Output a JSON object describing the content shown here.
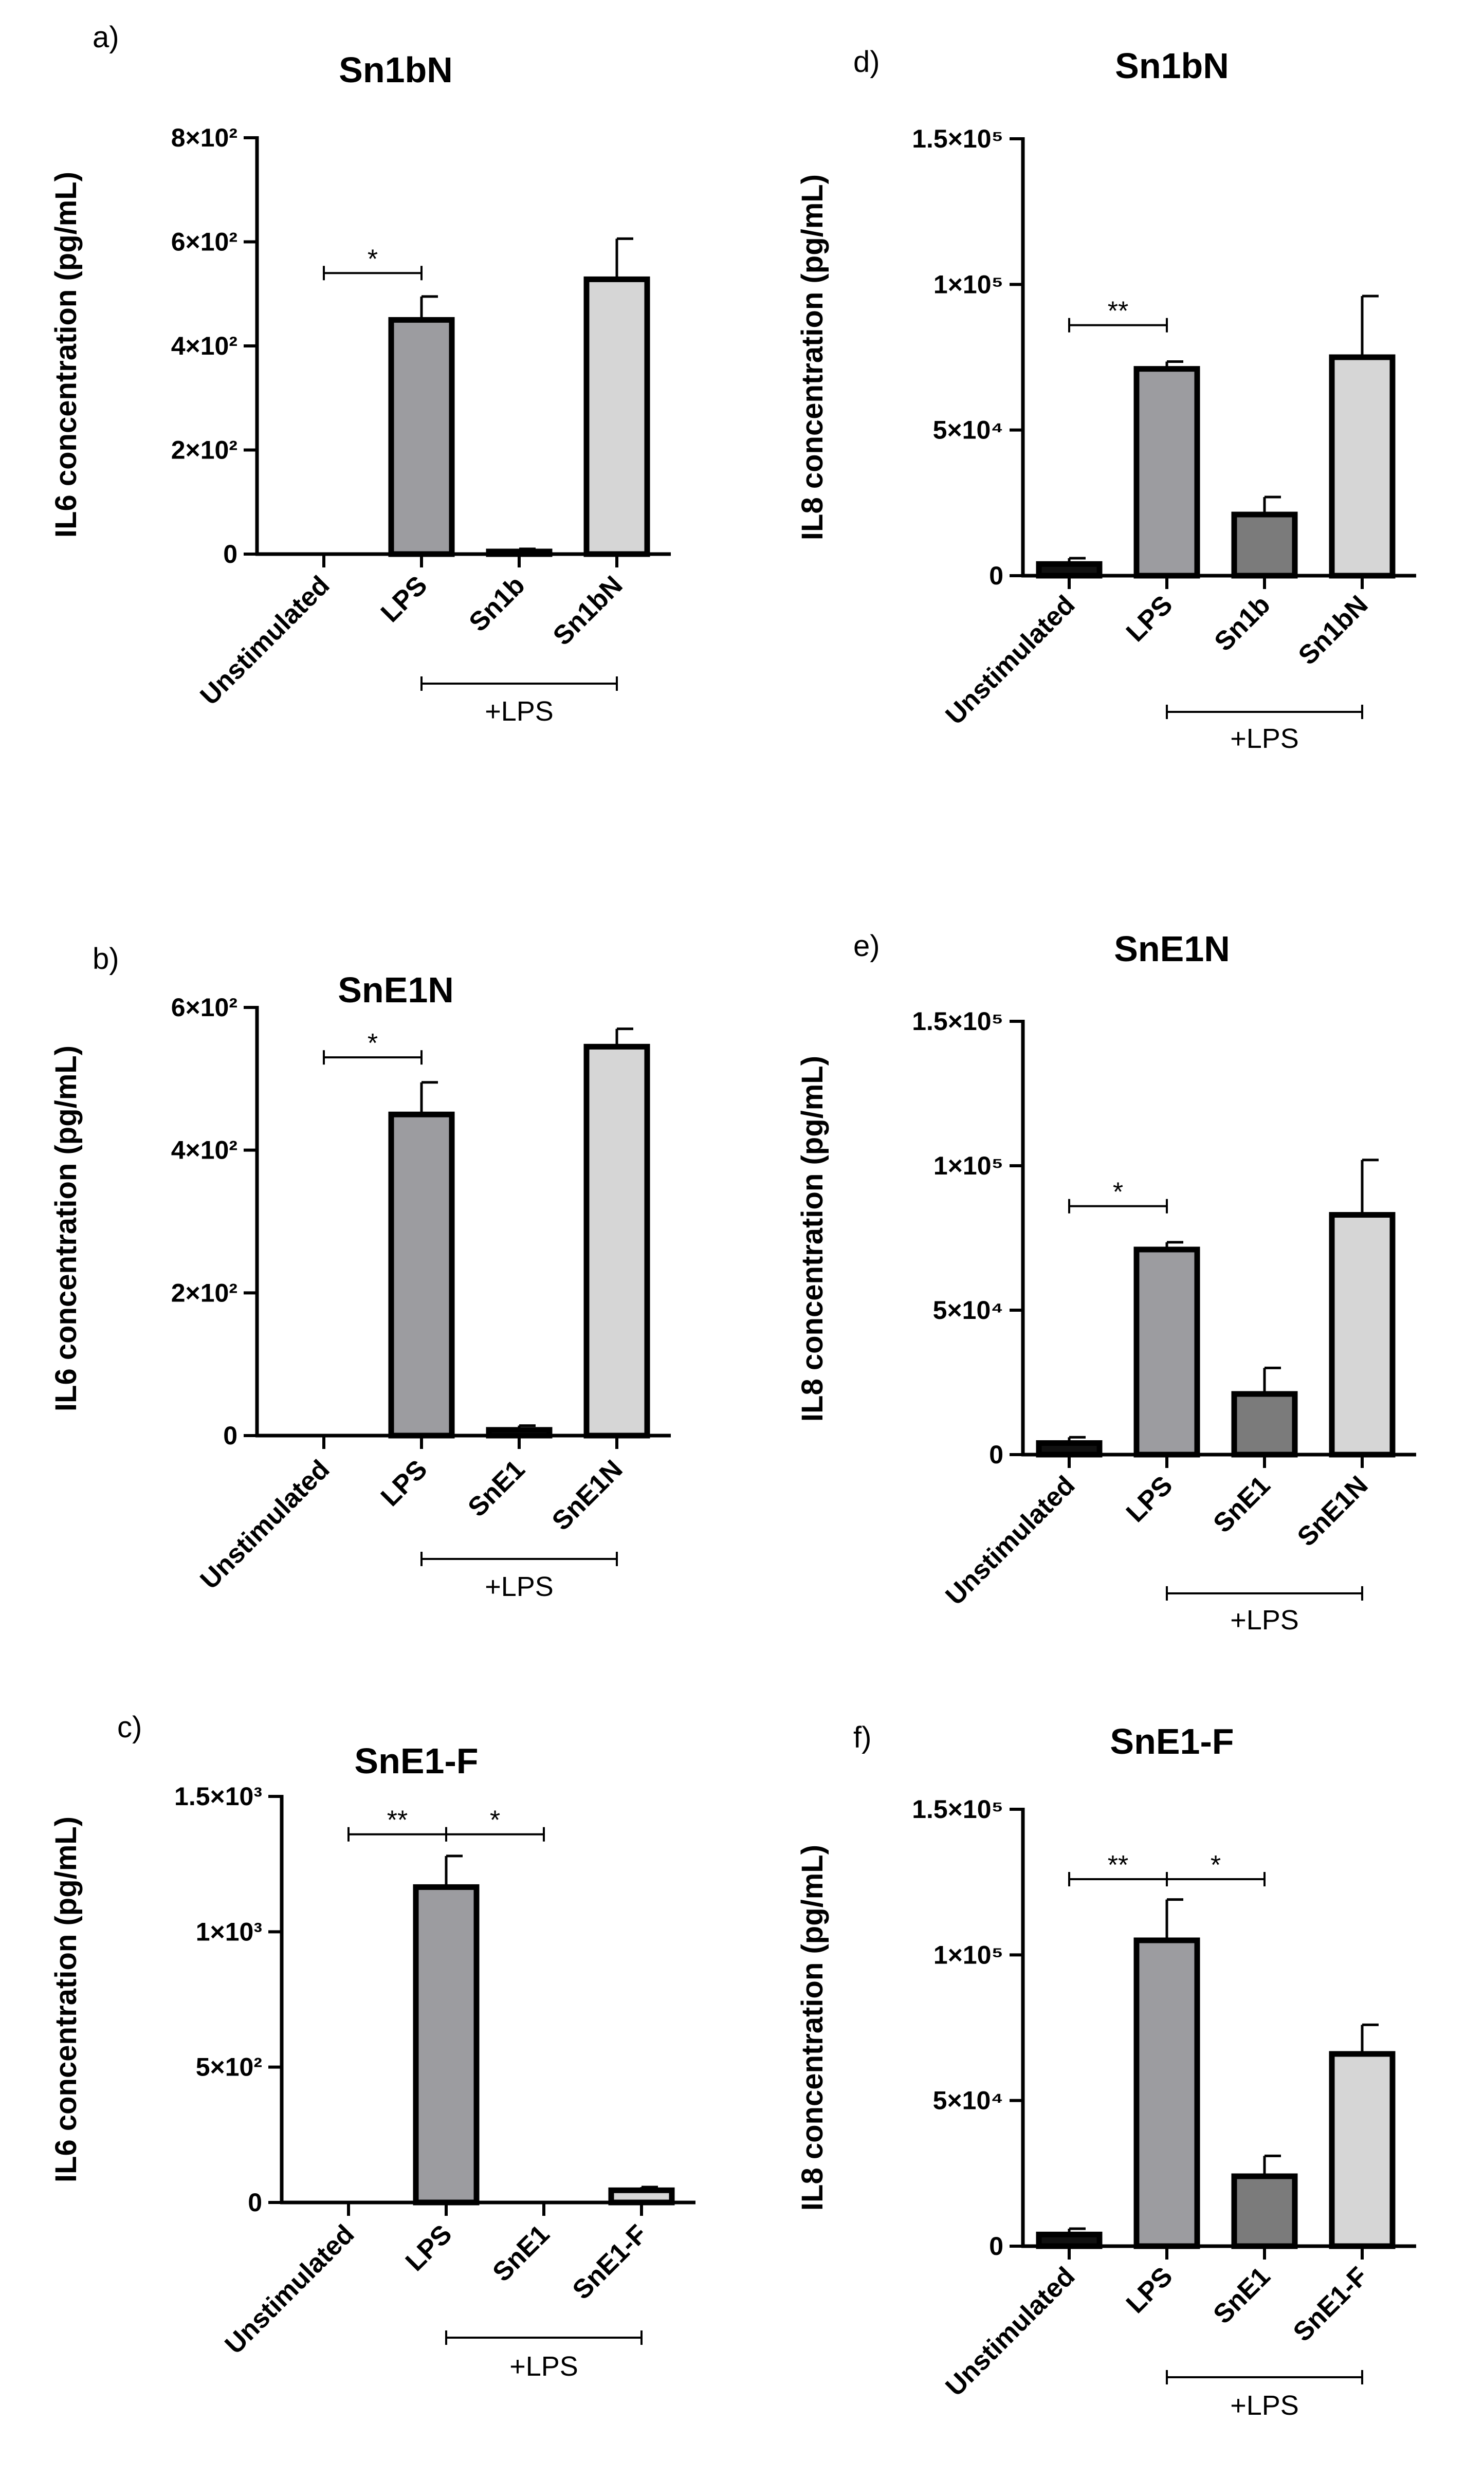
{
  "colors": {
    "unstimulated": "#111111",
    "lps": "#9c9ca0",
    "inhibitor": "#7b7b7b",
    "nanoparticle": "#d6d6d6"
  },
  "chart_data": [
    {
      "panel": "a)",
      "type": "bar",
      "title": "Sn1bN",
      "ylabel": "IL6 concentration (pg/mL)",
      "categories": [
        "Unstimulated",
        "LPS",
        "Sn1b",
        "Sn1bN"
      ],
      "values": [
        0,
        450,
        5,
        528
      ],
      "errors": [
        0,
        45,
        5,
        78
      ],
      "bar_colors": [
        "#111111",
        "#9c9ca0",
        "#7b7b7b",
        "#d6d6d6"
      ],
      "ylim": [
        0,
        800
      ],
      "yticks": [
        0,
        200,
        400,
        600,
        800
      ],
      "ytick_labels": [
        "0",
        "2×10²",
        "4×10²",
        "6×10²",
        "8×10²"
      ],
      "bracket_label": "+LPS",
      "bracket_span": [
        1,
        3
      ],
      "significance": [
        {
          "from": 0,
          "to": 1,
          "label": "*",
          "y": 540
        }
      ]
    },
    {
      "panel": "b)",
      "type": "bar",
      "title": "SnE1N",
      "ylabel": "IL6 concentration (pg/mL)",
      "categories": [
        "Unstimulated",
        "LPS",
        "SnE1",
        "SnE1N"
      ],
      "values": [
        0,
        450,
        8,
        545
      ],
      "errors": [
        0,
        45,
        6,
        25
      ],
      "bar_colors": [
        "#111111",
        "#9c9ca0",
        "#7b7b7b",
        "#d6d6d6"
      ],
      "ylim": [
        0,
        600
      ],
      "yticks": [
        0,
        200,
        400,
        600
      ],
      "ytick_labels": [
        "0",
        "2×10²",
        "4×10²",
        "6×10²"
      ],
      "bracket_label": "+LPS",
      "bracket_span": [
        1,
        3
      ],
      "significance": [
        {
          "from": 0,
          "to": 1,
          "label": "*",
          "y": 530
        }
      ]
    },
    {
      "panel": "c)",
      "type": "bar",
      "title": "SnE1-F",
      "ylabel": "IL6 concentration (pg/mL)",
      "categories": [
        "Unstimulated",
        "LPS",
        "SnE1",
        "SnE1-F"
      ],
      "values": [
        0,
        1165,
        0,
        45
      ],
      "errors": [
        0,
        115,
        0,
        12
      ],
      "bar_colors": [
        "#111111",
        "#9c9ca0",
        "#7b7b7b",
        "#d6d6d6"
      ],
      "ylim": [
        0,
        1500
      ],
      "yticks": [
        0,
        500,
        1000,
        1500
      ],
      "ytick_labels": [
        "0",
        "5×10²",
        "1×10³",
        "1.5×10³"
      ],
      "bracket_label": "+LPS",
      "bracket_span": [
        1,
        3
      ],
      "significance": [
        {
          "from": 0,
          "to": 1,
          "label": "**",
          "y": 1360
        },
        {
          "from": 1,
          "to": 2,
          "label": "*",
          "y": 1360
        }
      ]
    },
    {
      "panel": "d)",
      "type": "bar",
      "title": "Sn1bN",
      "ylabel": "IL8 concentration (pg/mL)",
      "categories": [
        "Unstimulated",
        "LPS",
        "Sn1b",
        "Sn1bN"
      ],
      "values": [
        4000,
        71000,
        21000,
        75000
      ],
      "errors": [
        2000,
        2500,
        6000,
        21000
      ],
      "bar_colors": [
        "#111111",
        "#9c9ca0",
        "#7b7b7b",
        "#d6d6d6"
      ],
      "ylim": [
        0,
        150000
      ],
      "yticks": [
        0,
        50000,
        100000,
        150000
      ],
      "ytick_labels": [
        "0",
        "5×10⁴",
        "1×10⁵",
        "1.5×10⁵"
      ],
      "bracket_label": "+LPS",
      "bracket_span": [
        1,
        3
      ],
      "significance": [
        {
          "from": 0,
          "to": 1,
          "label": "**",
          "y": 86000
        }
      ]
    },
    {
      "panel": "e)",
      "type": "bar",
      "title": "SnE1N",
      "ylabel": "IL8 concentration (pg/mL)",
      "categories": [
        "Unstimulated",
        "LPS",
        "SnE1",
        "SnE1N"
      ],
      "values": [
        4000,
        71000,
        21000,
        83000
      ],
      "errors": [
        2000,
        2500,
        9000,
        19000
      ],
      "bar_colors": [
        "#111111",
        "#9c9ca0",
        "#7b7b7b",
        "#d6d6d6"
      ],
      "ylim": [
        0,
        150000
      ],
      "yticks": [
        0,
        50000,
        100000,
        150000
      ],
      "ytick_labels": [
        "0",
        "5×10⁴",
        "1×10⁵",
        "1.5×10⁵"
      ],
      "bracket_label": "+LPS",
      "bracket_span": [
        1,
        3
      ],
      "significance": [
        {
          "from": 0,
          "to": 1,
          "label": "*",
          "y": 86000
        }
      ]
    },
    {
      "panel": "f)",
      "type": "bar",
      "title": "SnE1-F",
      "ylabel": "IL8 concentration (pg/mL)",
      "categories": [
        "Unstimulated",
        "LPS",
        "SnE1",
        "SnE1-F"
      ],
      "values": [
        4000,
        105000,
        24000,
        66000
      ],
      "errors": [
        2000,
        14000,
        7000,
        10000
      ],
      "bar_colors": [
        "#111111",
        "#9c9ca0",
        "#7b7b7b",
        "#d6d6d6"
      ],
      "ylim": [
        0,
        150000
      ],
      "yticks": [
        0,
        50000,
        100000,
        150000
      ],
      "ytick_labels": [
        "0",
        "5×10⁴",
        "1×10⁵",
        "1.5×10⁵"
      ],
      "bracket_label": "+LPS",
      "bracket_span": [
        1,
        3
      ],
      "significance": [
        {
          "from": 0,
          "to": 1,
          "label": "**",
          "y": 126000
        },
        {
          "from": 1,
          "to": 2,
          "label": "*",
          "y": 126000
        }
      ]
    }
  ]
}
